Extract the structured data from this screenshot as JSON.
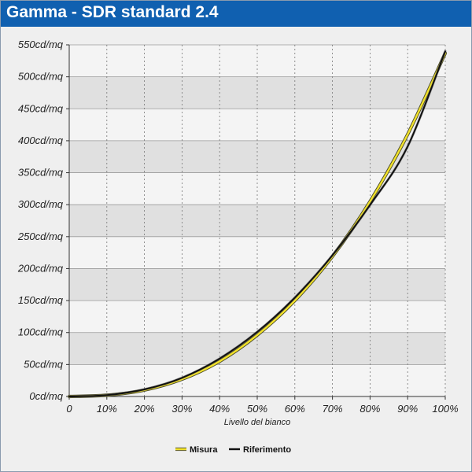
{
  "title": "Gamma - SDR standard 2.4",
  "colors": {
    "title_bar": "#1060b0",
    "measure": "#f2e22a",
    "reference": "#111111",
    "band_dark": "#e0e0e0",
    "band_light": "#f4f4f4"
  },
  "chart_data": {
    "type": "line",
    "xlabel": "Livello del bianco",
    "ylabel": "",
    "x_ticks": [
      "0",
      "10%",
      "20%",
      "30%",
      "40%",
      "50%",
      "60%",
      "70%",
      "80%",
      "90%",
      "100%"
    ],
    "y_ticks": [
      "0cd/mq",
      "50cd/mq",
      "100cd/mq",
      "150cd/mq",
      "200cd/mq",
      "250cd/mq",
      "300cd/mq",
      "350cd/mq",
      "400cd/mq",
      "450cd/mq",
      "500cd/mq",
      "550cd/mq"
    ],
    "xlim": [
      0,
      100
    ],
    "ylim": [
      0,
      550
    ],
    "grid": true,
    "legend_position": "bottom-center",
    "x": [
      0,
      10,
      20,
      30,
      40,
      50,
      60,
      70,
      80,
      90,
      100
    ],
    "series": [
      {
        "name": "Misura",
        "color": "#f2e22a",
        "values": [
          0,
          2,
          10,
          27,
          55,
          96,
          150,
          219,
          305,
          410,
          537
        ]
      },
      {
        "name": "Riferimento",
        "color": "#111111",
        "values": [
          0,
          2.1,
          11.1,
          29.2,
          59.3,
          101.0,
          154.7,
          220.8,
          299.5,
          391.0,
          540.0
        ]
      }
    ]
  }
}
